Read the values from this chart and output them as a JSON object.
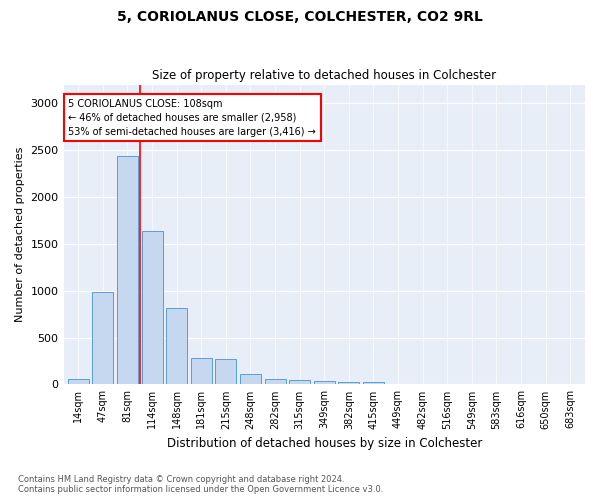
{
  "title1": "5, CORIOLANUS CLOSE, COLCHESTER, CO2 9RL",
  "title2": "Size of property relative to detached houses in Colchester",
  "xlabel": "Distribution of detached houses by size in Colchester",
  "ylabel": "Number of detached properties",
  "categories": [
    "14sqm",
    "47sqm",
    "81sqm",
    "114sqm",
    "148sqm",
    "181sqm",
    "215sqm",
    "248sqm",
    "282sqm",
    "315sqm",
    "349sqm",
    "382sqm",
    "415sqm",
    "449sqm",
    "482sqm",
    "516sqm",
    "549sqm",
    "583sqm",
    "616sqm",
    "650sqm",
    "683sqm"
  ],
  "values": [
    55,
    985,
    2435,
    1640,
    820,
    280,
    275,
    115,
    55,
    45,
    35,
    30,
    30,
    0,
    0,
    0,
    0,
    0,
    0,
    0,
    0
  ],
  "bar_color": "#c5d8f0",
  "bar_edge_color": "#5a9fd4",
  "vline_color": "red",
  "annotation_text": "5 CORIOLANUS CLOSE: 108sqm\n← 46% of detached houses are smaller (2,958)\n53% of semi-detached houses are larger (3,416) →",
  "annotation_box_color": "white",
  "annotation_box_edge_color": "red",
  "ylim": [
    0,
    3200
  ],
  "yticks": [
    0,
    500,
    1000,
    1500,
    2000,
    2500,
    3000
  ],
  "background_color": "#e8eef8",
  "footnote1": "Contains HM Land Registry data © Crown copyright and database right 2024.",
  "footnote2": "Contains public sector information licensed under the Open Government Licence v3.0."
}
